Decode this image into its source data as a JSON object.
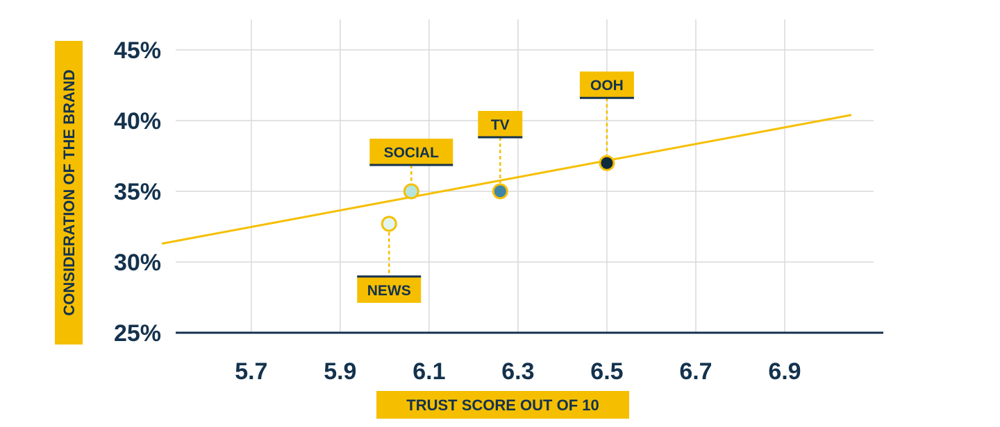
{
  "chart_data": {
    "type": "scatter",
    "title": "",
    "xlabel": "TRUST SCORE OUT OF 10",
    "ylabel": "CONSIDERATION OF THE BRAND",
    "xlim": [
      5.53,
      7.1
    ],
    "ylim": [
      25,
      45
    ],
    "x_ticks": [
      5.7,
      5.9,
      6.1,
      6.3,
      6.5,
      6.7,
      6.9
    ],
    "x_tick_labels": [
      "5.7",
      "5.9",
      "6.1",
      "6.3",
      "6.5",
      "6.7",
      "6.9"
    ],
    "y_ticks": [
      25,
      30,
      35,
      40,
      45
    ],
    "y_tick_labels": [
      "25%",
      "30%",
      "35%",
      "40%",
      "45%"
    ],
    "grid": true,
    "points": [
      {
        "label": "NEWS",
        "x": 6.01,
        "y": 32.7,
        "color": "#e1f4ef",
        "label_position": "below"
      },
      {
        "label": "SOCIAL",
        "x": 6.06,
        "y": 35.0,
        "color": "#b7e4dc",
        "label_position": "above"
      },
      {
        "label": "TV",
        "x": 6.26,
        "y": 35.0,
        "color": "#3f85a8",
        "label_position": "above"
      },
      {
        "label": "OOH",
        "x": 6.5,
        "y": 37.0,
        "color": "#0e2a3c",
        "label_position": "above"
      }
    ],
    "trendline": {
      "x": [
        5.53,
        7.05
      ],
      "y": [
        31.3,
        40.4
      ]
    }
  },
  "colors": {
    "accent": "#f5bf00",
    "text": "#14324d",
    "grid": "#d9d9d9",
    "axis": "#14324d"
  }
}
